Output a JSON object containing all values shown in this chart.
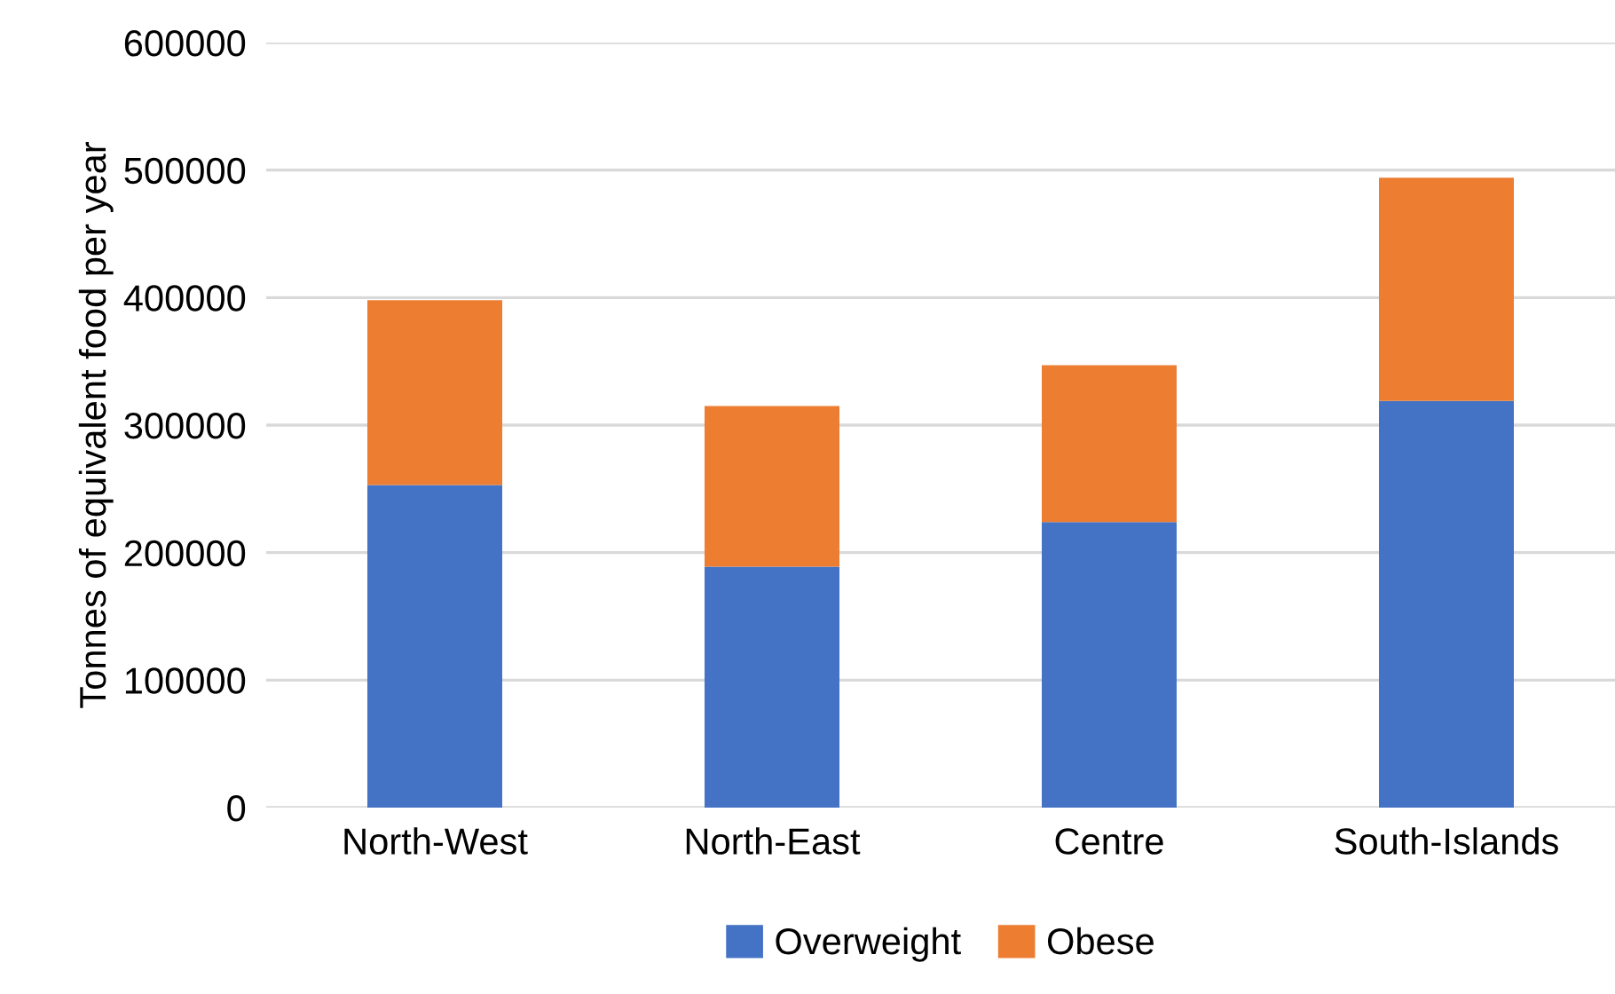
{
  "chart_data": {
    "type": "bar",
    "stacked": true,
    "ylabel": "Tonnes of equivalent food per year",
    "categories": [
      "North-West",
      "North-East",
      "Centre",
      "South-Islands"
    ],
    "series": [
      {
        "name": "Overweight",
        "color": "#4472c4",
        "values": [
          253000,
          189000,
          224000,
          319000
        ]
      },
      {
        "name": "Obese",
        "color": "#ed7d31",
        "values": [
          145000,
          126000,
          123000,
          175000
        ]
      }
    ],
    "ylim": [
      0,
      600000
    ],
    "yticks": [
      0,
      100000,
      200000,
      300000,
      400000,
      500000,
      600000
    ],
    "grid": "y",
    "legend": "bottom"
  }
}
